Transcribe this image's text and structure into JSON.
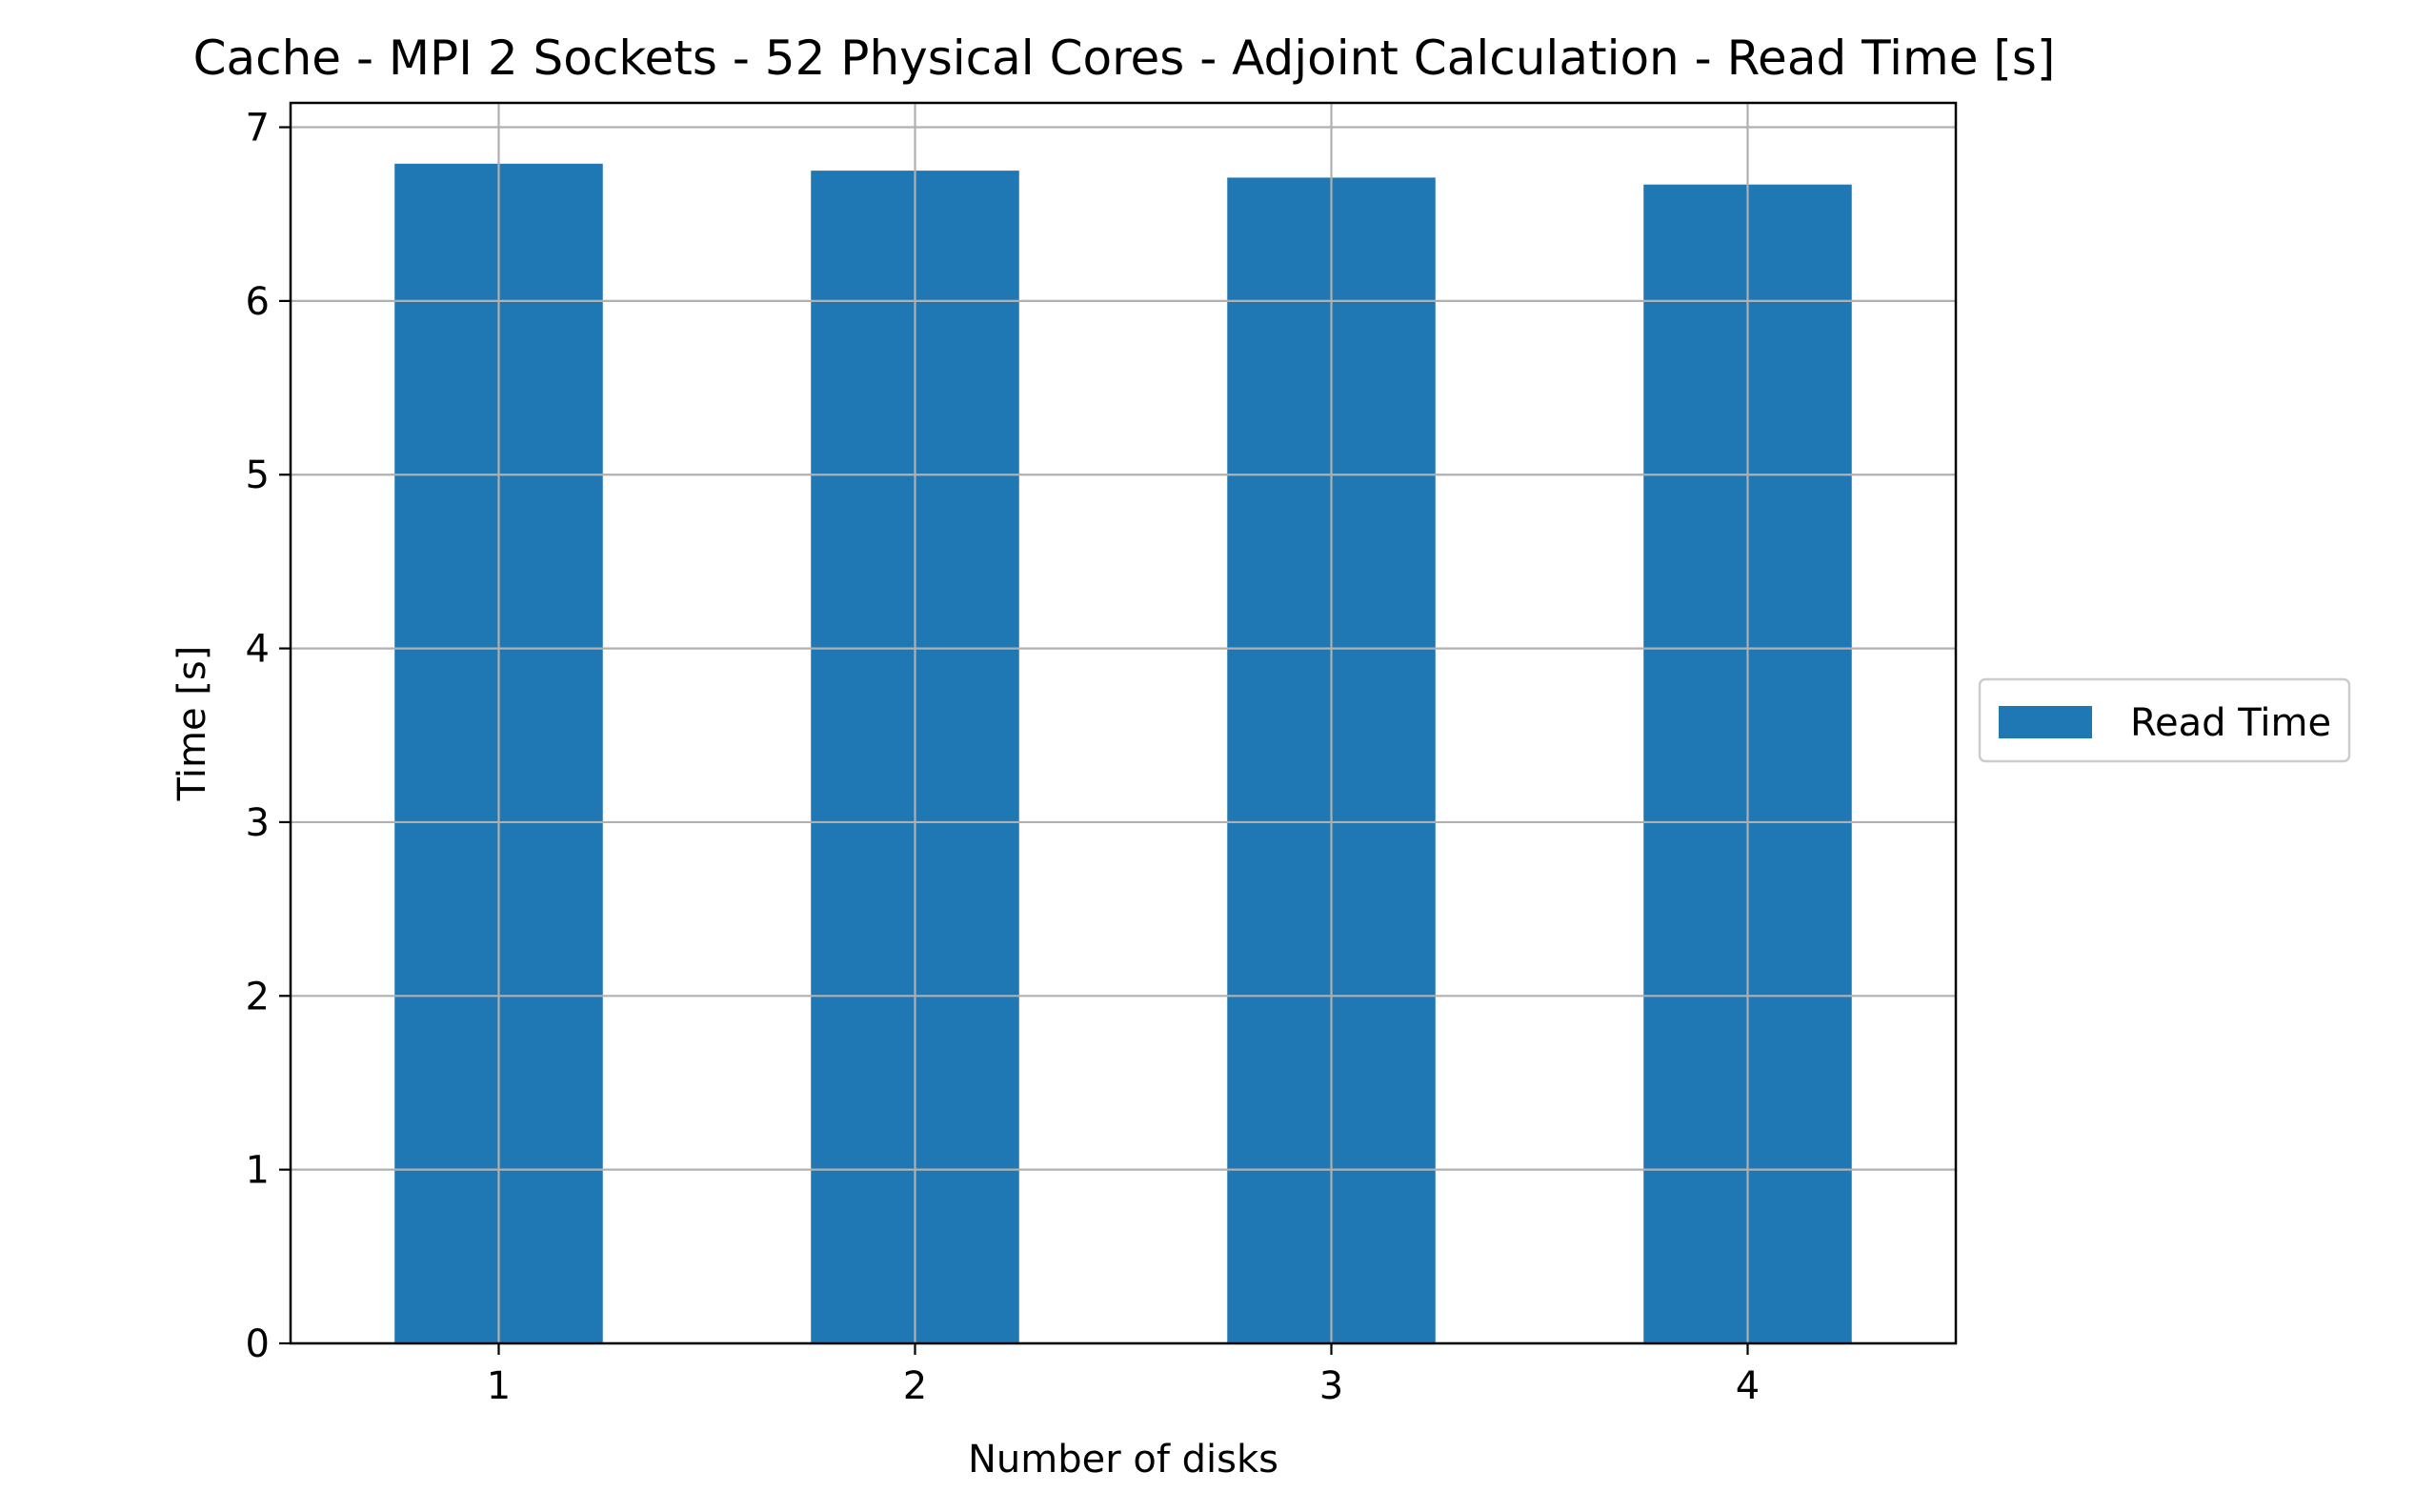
{
  "chart_data": {
    "type": "bar",
    "title": "Cache - MPI 2 Sockets - 52 Physical Cores - Adjoint Calculation - Read Time [s]",
    "xlabel": "Number of disks",
    "ylabel": "Time [s]",
    "categories": [
      "1",
      "2",
      "3",
      "4"
    ],
    "series": [
      {
        "name": "Read Time",
        "color": "#1f77b4",
        "values": [
          6.79,
          6.75,
          6.71,
          6.67
        ]
      }
    ],
    "ylim": [
      0,
      7.14
    ],
    "yticks": [
      "0",
      "1",
      "2",
      "3",
      "4",
      "5",
      "6",
      "7"
    ],
    "grid": true,
    "legend_position": "center-right-outside"
  }
}
